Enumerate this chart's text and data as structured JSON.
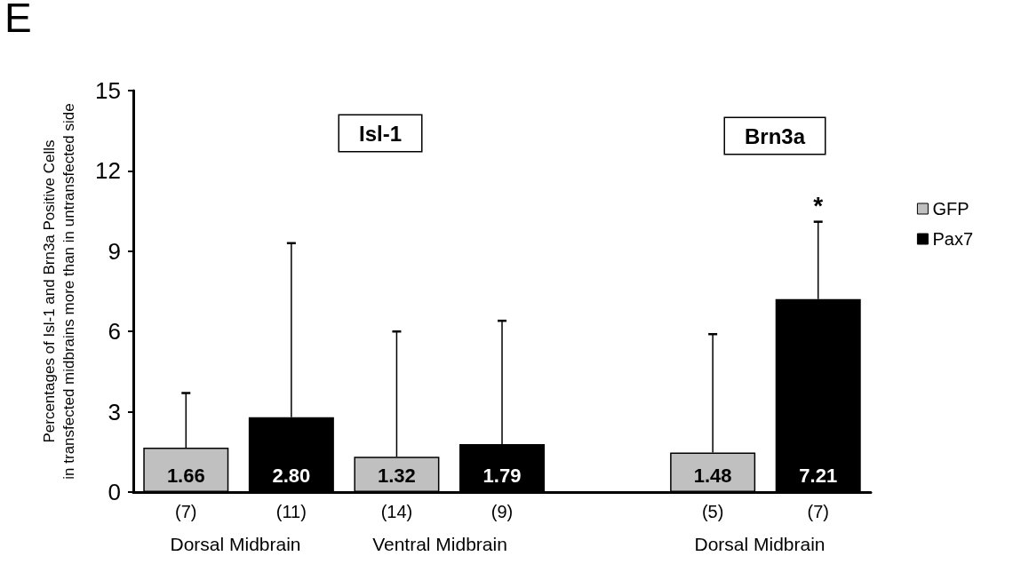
{
  "chart_data": {
    "type": "bar",
    "title": "E",
    "ylabel": "Percentages of Isl-1 and Brn3a Positive Cells\nin transfected midbrains more than in untransfected side",
    "categories": [
      "(7)",
      "(11)",
      "(14)",
      "(9)",
      null,
      "(5)",
      "(7)"
    ],
    "series": [
      {
        "name": "GFP",
        "color": "#c0c0c0",
        "values": [
          1.66,
          null,
          1.32,
          null,
          null,
          1.48,
          null
        ],
        "value_labels": [
          "1.66",
          null,
          "1.32",
          null,
          null,
          "1.48",
          null
        ],
        "errors": [
          [
            1.66,
            3.7
          ],
          null,
          [
            1.32,
            6.0
          ],
          null,
          null,
          [
            1.48,
            5.9
          ],
          null
        ]
      },
      {
        "name": "Pax7",
        "color": "#000000",
        "values": [
          null,
          2.8,
          null,
          1.79,
          null,
          null,
          7.21
        ],
        "value_labels": [
          null,
          "2.80",
          null,
          "1.79",
          null,
          null,
          "7.21"
        ],
        "errors": [
          null,
          [
            2.8,
            9.3
          ],
          null,
          [
            1.79,
            6.4
          ],
          null,
          null,
          [
            7.21,
            10.1
          ]
        ]
      }
    ],
    "ylim": [
      0,
      15
    ],
    "yticks": [
      0,
      3,
      6,
      9,
      12,
      15
    ],
    "grid": false,
    "legend": "right",
    "annotations": [
      "Isl-1",
      "Brn3a",
      "*",
      "Dorsal Midbrain",
      "Ventral Midbrain",
      "Dorsal Midbrain"
    ]
  }
}
